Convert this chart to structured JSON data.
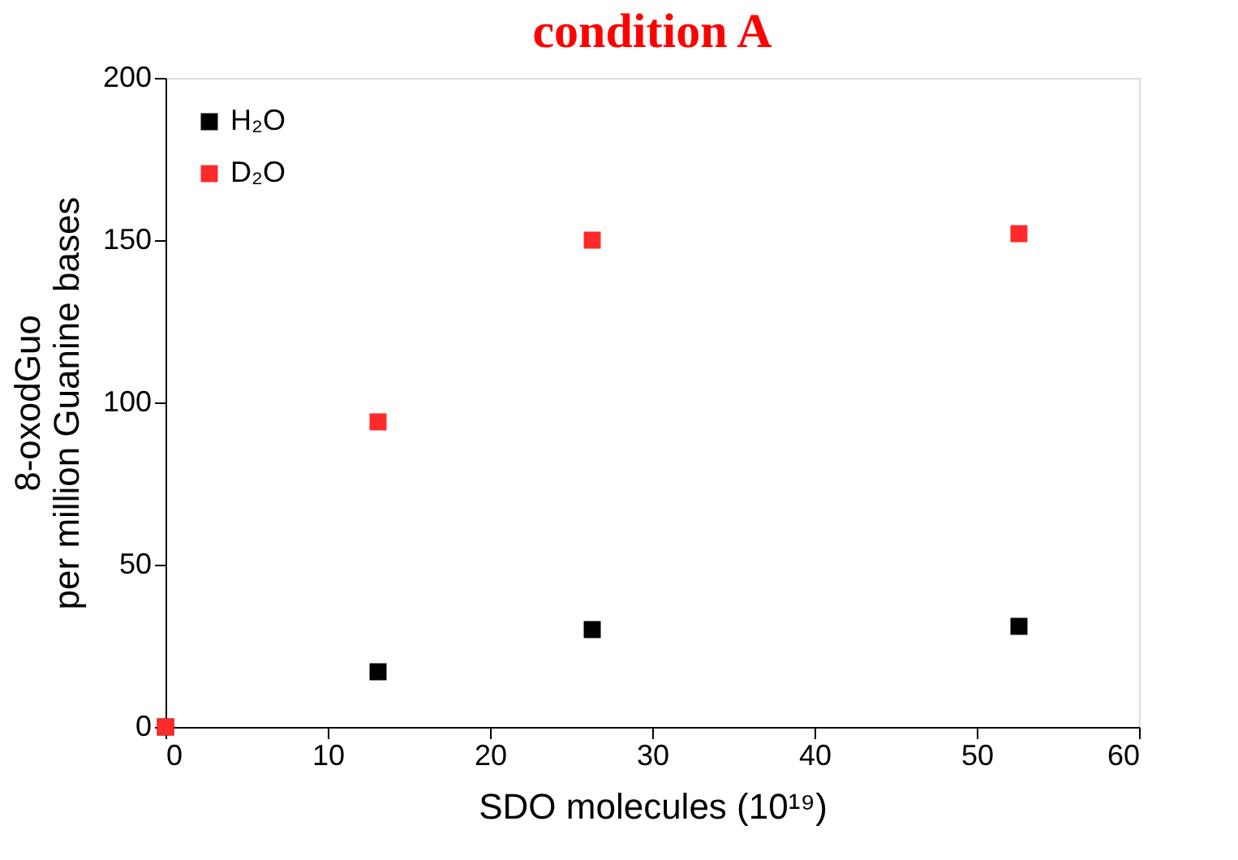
{
  "chart_data": {
    "type": "scatter",
    "title": "condition A",
    "xlabel": "SDO molecules (10¹⁹)",
    "ylabel": "8-oxodGuo\nper million Guanine bases",
    "x": [
      0,
      13.1,
      26.3,
      52.6
    ],
    "series": [
      {
        "name": "H₂O",
        "color": "#000000",
        "values": [
          0,
          17,
          30,
          31
        ]
      },
      {
        "name": "D₂O",
        "color": "#ff2a2a",
        "values": [
          0,
          94,
          150,
          152
        ]
      }
    ],
    "xlim": [
      0,
      60
    ],
    "xticks": [
      0,
      10,
      20,
      30,
      40,
      50,
      60
    ],
    "ylim": [
      0,
      200
    ],
    "yticks": [
      0,
      50,
      100,
      150,
      200
    ],
    "marker": "square",
    "legend": "top left",
    "grid": false
  }
}
